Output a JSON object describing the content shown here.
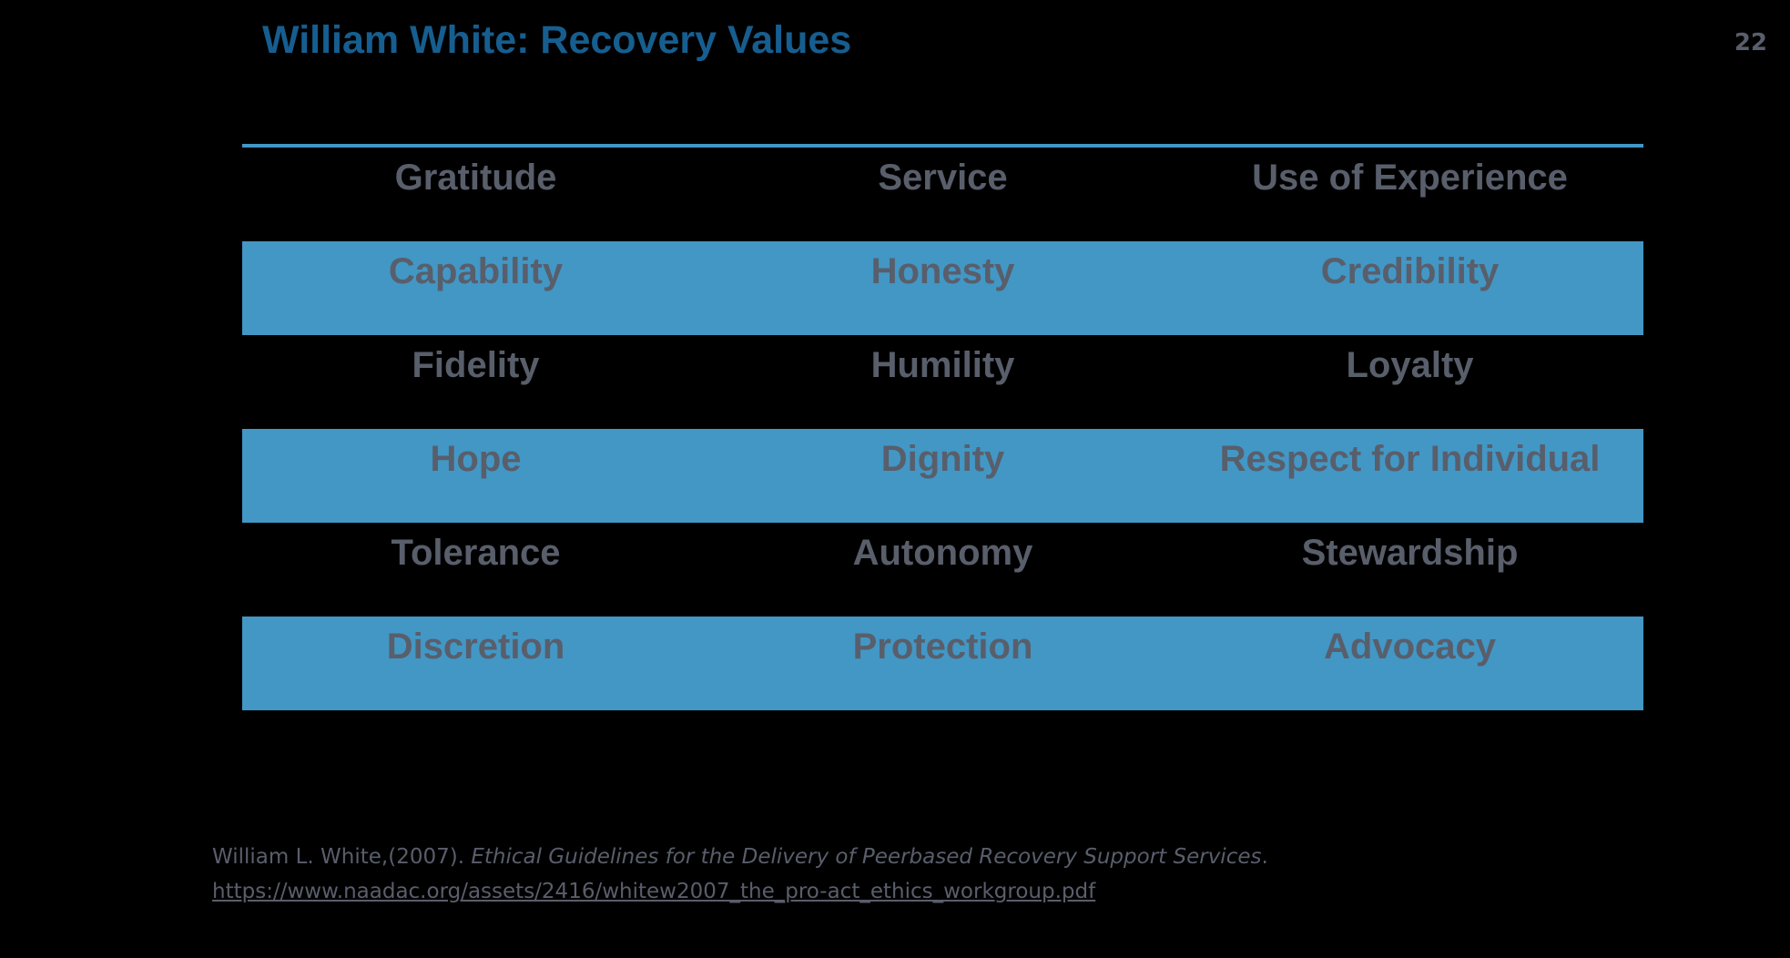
{
  "slide": {
    "title": "William White: Recovery Values",
    "page_number": "22",
    "colors": {
      "background": "#000000",
      "title_blue": "#165E90",
      "accent_blue": "#4297C5",
      "top_rule_blue": "#4297C5",
      "text_gray": "#595E6B"
    },
    "table": {
      "rows": [
        {
          "highlighted": false,
          "cells": [
            "Gratitude",
            "Service",
            "Use of Experience"
          ]
        },
        {
          "highlighted": true,
          "cells": [
            "Capability",
            "Honesty",
            "Credibility"
          ]
        },
        {
          "highlighted": false,
          "cells": [
            "Fidelity",
            "Humility",
            "Loyalty"
          ]
        },
        {
          "highlighted": true,
          "cells": [
            "Hope",
            "Dignity",
            "Respect for Individual"
          ]
        },
        {
          "highlighted": false,
          "cells": [
            "Tolerance",
            "Autonomy",
            "Stewardship"
          ]
        },
        {
          "highlighted": true,
          "cells": [
            "Discretion",
            "Protection",
            "Advocacy"
          ]
        }
      ]
    },
    "citation": {
      "author_part": "William L. White,(2007). ",
      "work_title_italic": "Ethical Guidelines for the Delivery of Peerbased Recovery Support Services",
      "suffix": ".",
      "link": "https://www.naadac.org/assets/2416/whitew2007_the_pro-act_ethics_workgroup.pdf"
    }
  }
}
